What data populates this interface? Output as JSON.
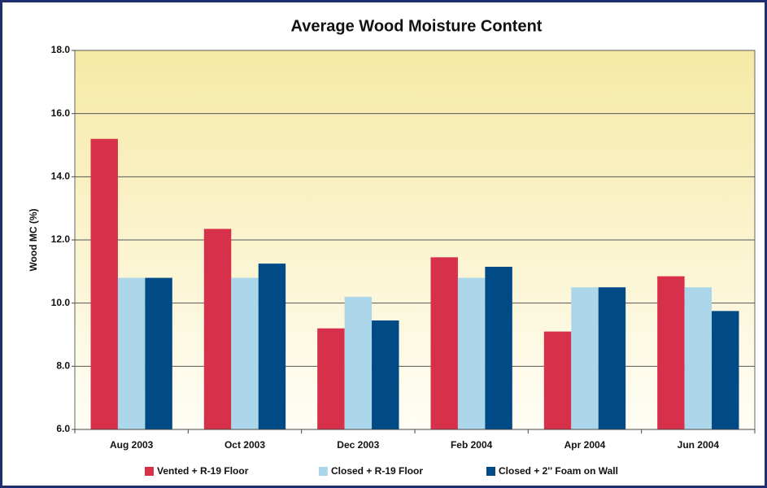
{
  "chart_data": {
    "type": "bar",
    "title": "Average Wood Moisture Content",
    "y_label": "Wood MC (%)",
    "categories": [
      "Aug 2003",
      "Oct 2003",
      "Dec 2003",
      "Feb 2004",
      "Apr 2004",
      "Jun 2004"
    ],
    "series": [
      {
        "name": "Vented + R-19 Floor",
        "color": "#d7304a",
        "values": [
          15.2,
          12.35,
          9.2,
          11.45,
          9.1,
          10.85
        ]
      },
      {
        "name": "Closed + R-19 Floor",
        "color": "#acd6ea",
        "values": [
          10.8,
          10.8,
          10.2,
          10.8,
          10.5,
          10.5
        ]
      },
      {
        "name": "Closed + 2'' Foam on Wall",
        "color": "#004a86",
        "values": [
          10.8,
          11.25,
          9.45,
          11.15,
          10.5,
          9.75
        ]
      }
    ],
    "ylim": [
      6,
      18
    ],
    "yticks": [
      {
        "value": 6,
        "label": "6.0"
      },
      {
        "value": 8,
        "label": "8.0"
      },
      {
        "value": 10,
        "label": "10.0"
      },
      {
        "value": 12,
        "label": "12.0"
      },
      {
        "value": 14,
        "label": "14.0"
      },
      {
        "value": 16,
        "label": "16.0"
      },
      {
        "value": 18,
        "label": "18.0"
      }
    ],
    "grid": true,
    "legend": "bottom"
  }
}
